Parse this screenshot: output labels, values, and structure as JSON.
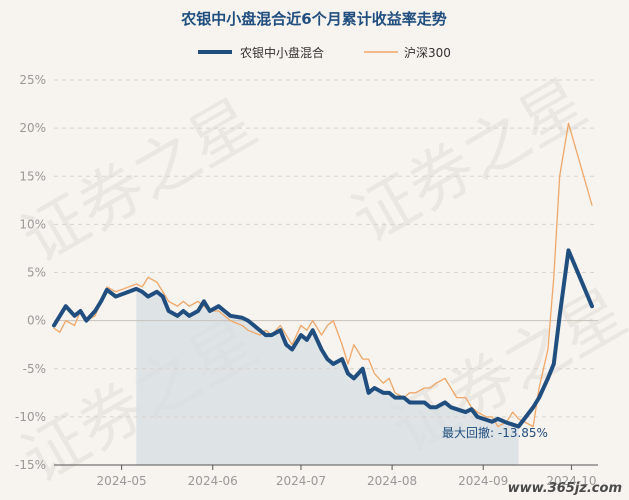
{
  "chart_data": {
    "type": "line",
    "title": "农银中小盘混合近6个月累计收益率走势",
    "xlabel": "",
    "ylabel": "",
    "legend_position": "top-center",
    "grid": true,
    "ylim": [
      -15,
      25
    ],
    "y_ticks": [
      "25%",
      "20%",
      "15%",
      "10%",
      "5%",
      "0%",
      "-5%",
      "-10%",
      "-15%"
    ],
    "y_tick_values": [
      25,
      20,
      15,
      10,
      5,
      0,
      -5,
      -10,
      -15
    ],
    "x_ticks": [
      "2024-05",
      "2024-06",
      "2024-07",
      "2024-08",
      "2024-09",
      "2024-10"
    ],
    "x_tick_dates": [
      "2024-05-01",
      "2024-06-01",
      "2024-07-01",
      "2024-08-01",
      "2024-09-01",
      "2024-10-01"
    ],
    "series": [
      {
        "name": "农银中小盘混合",
        "color": "#1f4e7f",
        "x": [
          "2024-04-08",
          "2024-04-10",
          "2024-04-12",
          "2024-04-15",
          "2024-04-17",
          "2024-04-19",
          "2024-04-22",
          "2024-04-24",
          "2024-04-26",
          "2024-04-29",
          "2024-05-06",
          "2024-05-08",
          "2024-05-10",
          "2024-05-13",
          "2024-05-15",
          "2024-05-17",
          "2024-05-20",
          "2024-05-22",
          "2024-05-24",
          "2024-05-27",
          "2024-05-29",
          "2024-05-31",
          "2024-06-03",
          "2024-06-05",
          "2024-06-07",
          "2024-06-11",
          "2024-06-13",
          "2024-06-17",
          "2024-06-19",
          "2024-06-21",
          "2024-06-24",
          "2024-06-26",
          "2024-06-28",
          "2024-07-01",
          "2024-07-03",
          "2024-07-05",
          "2024-07-08",
          "2024-07-10",
          "2024-07-12",
          "2024-07-15",
          "2024-07-17",
          "2024-07-19",
          "2024-07-22",
          "2024-07-24",
          "2024-07-26",
          "2024-07-29",
          "2024-07-31",
          "2024-08-02",
          "2024-08-05",
          "2024-08-07",
          "2024-08-09",
          "2024-08-12",
          "2024-08-14",
          "2024-08-16",
          "2024-08-19",
          "2024-08-21",
          "2024-08-23",
          "2024-08-26",
          "2024-08-28",
          "2024-08-30",
          "2024-09-02",
          "2024-09-04",
          "2024-09-06",
          "2024-09-09",
          "2024-09-11",
          "2024-09-13",
          "2024-09-18",
          "2024-09-20",
          "2024-09-23",
          "2024-09-25",
          "2024-09-27",
          "2024-09-30",
          "2024-10-08"
        ],
        "values": [
          -0.5,
          0.5,
          1.5,
          0.5,
          1.0,
          0.0,
          1.0,
          2.0,
          3.2,
          2.5,
          3.3,
          3.0,
          2.5,
          3.0,
          2.5,
          1.0,
          0.5,
          1.0,
          0.5,
          1.0,
          2.0,
          1.0,
          1.5,
          1.0,
          0.5,
          0.3,
          0.0,
          -1.0,
          -1.5,
          -1.5,
          -1.0,
          -2.5,
          -3.0,
          -1.5,
          -2.0,
          -1.0,
          -3.0,
          -4.0,
          -4.5,
          -4.0,
          -5.5,
          -6.0,
          -5.0,
          -7.5,
          -7.0,
          -7.5,
          -7.5,
          -8.0,
          -8.0,
          -8.5,
          -8.5,
          -8.5,
          -9.0,
          -9.0,
          -8.5,
          -9.0,
          -9.2,
          -9.5,
          -9.2,
          -10.0,
          -10.3,
          -10.5,
          -10.2,
          -10.6,
          -10.8,
          -11.0,
          -9.0,
          -8.0,
          -6.0,
          -4.5,
          0.5,
          7.3,
          1.5
        ]
      },
      {
        "name": "沪深300",
        "color": "#f0a768",
        "x": [
          "2024-04-08",
          "2024-04-10",
          "2024-04-12",
          "2024-04-15",
          "2024-04-17",
          "2024-04-19",
          "2024-04-22",
          "2024-04-24",
          "2024-04-26",
          "2024-04-29",
          "2024-05-06",
          "2024-05-08",
          "2024-05-10",
          "2024-05-13",
          "2024-05-15",
          "2024-05-17",
          "2024-05-20",
          "2024-05-22",
          "2024-05-24",
          "2024-05-27",
          "2024-05-29",
          "2024-05-31",
          "2024-06-03",
          "2024-06-05",
          "2024-06-07",
          "2024-06-11",
          "2024-06-13",
          "2024-06-17",
          "2024-06-19",
          "2024-06-21",
          "2024-06-24",
          "2024-06-26",
          "2024-06-28",
          "2024-07-01",
          "2024-07-03",
          "2024-07-05",
          "2024-07-08",
          "2024-07-10",
          "2024-07-12",
          "2024-07-15",
          "2024-07-17",
          "2024-07-19",
          "2024-07-22",
          "2024-07-24",
          "2024-07-26",
          "2024-07-29",
          "2024-07-31",
          "2024-08-02",
          "2024-08-05",
          "2024-08-07",
          "2024-08-09",
          "2024-08-12",
          "2024-08-14",
          "2024-08-16",
          "2024-08-19",
          "2024-08-21",
          "2024-08-23",
          "2024-08-26",
          "2024-08-28",
          "2024-08-30",
          "2024-09-02",
          "2024-09-04",
          "2024-09-06",
          "2024-09-09",
          "2024-09-11",
          "2024-09-13",
          "2024-09-18",
          "2024-09-20",
          "2024-09-23",
          "2024-09-25",
          "2024-09-27",
          "2024-09-30",
          "2024-10-08"
        ],
        "values": [
          -0.8,
          -1.2,
          0.0,
          -0.5,
          1.0,
          0.0,
          0.5,
          2.0,
          3.5,
          3.0,
          3.8,
          3.5,
          4.5,
          4.0,
          3.0,
          2.0,
          1.5,
          2.0,
          1.5,
          2.0,
          1.5,
          1.0,
          1.0,
          0.5,
          0.0,
          -0.5,
          -1.0,
          -1.5,
          -1.0,
          -1.5,
          -0.5,
          -1.5,
          -2.5,
          -0.5,
          -1.0,
          0.0,
          -1.5,
          -0.5,
          0.0,
          -2.5,
          -4.5,
          -2.5,
          -4.0,
          -4.0,
          -5.5,
          -6.5,
          -6.0,
          -7.5,
          -8.0,
          -7.5,
          -7.5,
          -7.0,
          -7.0,
          -6.5,
          -6.0,
          -7.0,
          -8.0,
          -8.0,
          -9.0,
          -9.5,
          -10.0,
          -10.0,
          -11.0,
          -10.5,
          -9.5,
          -10.2,
          -11.0,
          -7.0,
          -3.0,
          4.5,
          15.0,
          20.5,
          12.0
        ]
      }
    ],
    "annotation": {
      "label": "最大回撤: -13.85%",
      "x": "2024-09-13",
      "y": -11.0,
      "color": "#1f4e7f"
    },
    "shaded_range": {
      "from": "2024-05-06",
      "to": "2024-09-13",
      "color": "#d6dde3"
    },
    "watermark": "证券之星",
    "footer_url": "www.365jz.com"
  }
}
